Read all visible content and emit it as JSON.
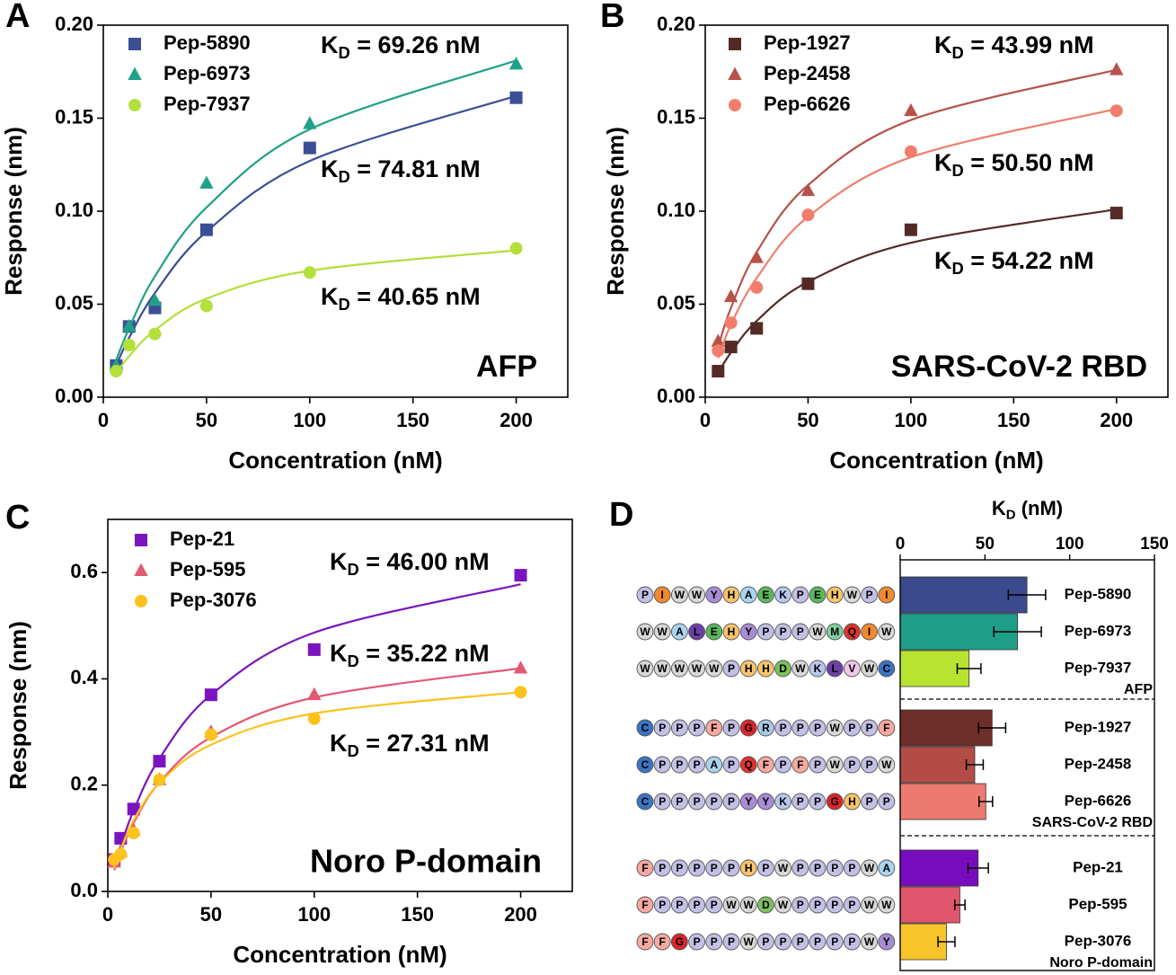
{
  "chart_data": [
    {
      "type": "scatter",
      "panel_label": "A",
      "inset_label": "AFP",
      "x_label": "Concentration (nM)",
      "y_label": "Response (nm)",
      "x": [
        6.25,
        12.5,
        25,
        50,
        100,
        200
      ],
      "xlim": [
        0,
        225
      ],
      "xticks": [
        0,
        50,
        100,
        150,
        200
      ],
      "ylim": [
        0,
        0.2
      ],
      "yticks": [
        {
          "value": 0,
          "label": "0.00"
        },
        0.05,
        {
          "value": 0.1,
          "label": "0.10"
        },
        0.15,
        {
          "value": 0.2,
          "label": "0.20"
        }
      ],
      "series": [
        {
          "name": "Pep-5890",
          "color": "#3a4f96",
          "marker": "square",
          "values": [
            0.017,
            0.038,
            0.048,
            0.09,
            0.134,
            0.161
          ],
          "fit": [
            0.017,
            0.032,
            0.056,
            0.089,
            0.127,
            0.162
          ],
          "annotation": {
            "main": "K",
            "sub": "D",
            "tail": " = 74.81 nM"
          }
        },
        {
          "name": "Pep-6973",
          "color": "#1fa187",
          "marker": "triangle",
          "values": [
            0.017,
            0.038,
            0.052,
            0.115,
            0.147,
            0.179
          ],
          "fit": [
            0.02,
            0.037,
            0.065,
            0.102,
            0.144,
            0.181
          ],
          "annotation": {
            "main": "K",
            "sub": "D",
            "tail": " = 69.26 nM"
          }
        },
        {
          "name": "Pep-7937",
          "color": "#b3e03a",
          "marker": "circle",
          "values": [
            0.014,
            0.028,
            0.034,
            0.049,
            0.067,
            0.08
          ],
          "fit": [
            0.013,
            0.022,
            0.036,
            0.053,
            0.068,
            0.079
          ],
          "annotation": {
            "main": "K",
            "sub": "D",
            "tail": " = 40.65 nM"
          }
        }
      ]
    },
    {
      "type": "scatter",
      "panel_label": "B",
      "inset_label": "SARS-CoV-2 RBD",
      "x_label": "Concentration (nM)",
      "y_label": "Response (nm)",
      "x": [
        6.25,
        12.5,
        25,
        50,
        100,
        200
      ],
      "xlim": [
        0,
        225
      ],
      "xticks": [
        0,
        50,
        100,
        150,
        200
      ],
      "ylim": [
        0,
        0.2
      ],
      "yticks": [
        {
          "value": 0,
          "label": "0.00"
        },
        0.05,
        {
          "value": 0.1,
          "label": "0.10"
        },
        0.15,
        {
          "value": 0.2,
          "label": "0.20"
        }
      ],
      "series": [
        {
          "name": "Pep-1927",
          "color": "#552a26",
          "marker": "square",
          "values": [
            0.014,
            0.027,
            0.037,
            0.061,
            0.09,
            0.099
          ],
          "fit": [
            0.013,
            0.024,
            0.041,
            0.062,
            0.083,
            0.101
          ],
          "annotation": {
            "main": "K",
            "sub": "D",
            "tail": " = 54.22 nM"
          }
        },
        {
          "name": "Pep-2458",
          "color": "#b5524a",
          "marker": "triangle",
          "values": [
            0.03,
            0.054,
            0.075,
            0.111,
            0.154,
            0.176
          ],
          "fit": [
            0.027,
            0.048,
            0.078,
            0.114,
            0.149,
            0.176
          ],
          "annotation": {
            "main": "K",
            "sub": "D",
            "tail": " = 43.99 nM"
          }
        },
        {
          "name": "Pep-6626",
          "color": "#f27d6c",
          "marker": "circle",
          "values": [
            0.025,
            0.04,
            0.059,
            0.098,
            0.132,
            0.154
          ],
          "fit": [
            0.021,
            0.039,
            0.064,
            0.097,
            0.129,
            0.155
          ],
          "annotation": {
            "main": "K",
            "sub": "D",
            "tail": " = 50.50 nM"
          }
        }
      ]
    },
    {
      "type": "scatter",
      "panel_label": "C",
      "inset_label": "Noro P-domain",
      "x_label": "Concentration (nM)",
      "y_label": "Response (nm)",
      "x": [
        3.125,
        6.25,
        12.5,
        25,
        50,
        100,
        200
      ],
      "xlim": [
        0,
        225
      ],
      "xticks": [
        0,
        50,
        100,
        150,
        200
      ],
      "ylim": [
        0,
        0.7
      ],
      "yticks": [
        {
          "value": 0,
          "label": "0.0"
        },
        0.2,
        0.4,
        0.6
      ],
      "series": [
        {
          "name": "Pep-21",
          "color": "#7a14c0",
          "marker": "square",
          "values": [
            0.06,
            0.1,
            0.155,
            0.245,
            0.37,
            0.455,
            0.595
          ],
          "fit": [
            0.045,
            0.085,
            0.152,
            0.25,
            0.37,
            0.487,
            0.578
          ],
          "annotation": {
            "main": "K",
            "sub": "D",
            "tail": " = 46.00 nM"
          }
        },
        {
          "name": "Pep-595",
          "color": "#e35872",
          "marker": "triangle",
          "values": [
            0.055,
            0.075,
            0.115,
            0.21,
            0.3,
            0.37,
            0.42
          ],
          "fit": [
            0.04,
            0.075,
            0.129,
            0.205,
            0.29,
            0.365,
            0.42
          ],
          "annotation": {
            "main": "K",
            "sub": "D",
            "tail": " = 35.22 nM"
          }
        },
        {
          "name": "Pep-3076",
          "color": "#fbc31c",
          "marker": "circle",
          "values": [
            0.06,
            0.07,
            0.11,
            0.21,
            0.295,
            0.325,
            0.375
          ],
          "fit": [
            0.044,
            0.079,
            0.134,
            0.204,
            0.276,
            0.335,
            0.375
          ],
          "annotation": {
            "main": "K",
            "sub": "D",
            "tail": " = 27.31 nM"
          }
        }
      ]
    },
    {
      "type": "bar",
      "orientation": "horizontal",
      "panel_label": "D",
      "x_label": {
        "main": "K",
        "sub": "D",
        "tail": " (nM)"
      },
      "xlim": [
        0,
        150
      ],
      "xticks": [
        0,
        50,
        100,
        150
      ],
      "residue_colors": {
        "P": "#c3c0e6",
        "I": "#ef8a2e",
        "W": "#d8d8d8",
        "Y": "#a88cd6",
        "H": "#f6c46b",
        "A": "#a9d4ee",
        "E": "#5cb85c",
        "K": "#b9c7ee",
        "L": "#6b3fa8",
        "M": "#7fcfa0",
        "Q": "#e0332b",
        "C": "#3a74c4",
        "F": "#f7a9a0",
        "G": "#d9262a",
        "R": "#a9c9ea",
        "D": "#7cc05a",
        "V": "#f0c6e8"
      },
      "groups": [
        {
          "label": "AFP",
          "categories": [
            "Pep-5890",
            "Pep-6973",
            "Pep-7937"
          ],
          "values": [
            74.81,
            69.26,
            40.65
          ],
          "errors": [
            11,
            14,
            7
          ],
          "colors": [
            "#3b4a8c",
            "#1e9e89",
            "#b8e330"
          ],
          "sequences": [
            "PIWWYHAEKPEHWPI",
            "WWALEHYPPPWMQIW",
            "WWWWWPHHDWKLVWC"
          ]
        },
        {
          "label": "SARS-CoV-2 RBD",
          "categories": [
            "Pep-1927",
            "Pep-2458",
            "Pep-6626"
          ],
          "values": [
            54.22,
            43.99,
            50.5
          ],
          "errors": [
            8,
            5,
            4
          ],
          "colors": [
            "#6e2e2a",
            "#b34b47",
            "#ec7a70"
          ],
          "sequences": [
            "CPPPFPGRPPPWPPF",
            "CPPPAPQFPFPWPPW",
            "CPPPPPYYKPPGHPP"
          ]
        },
        {
          "label": "Noro P-domain",
          "categories": [
            "Pep-21",
            "Pep-595",
            "Pep-3076"
          ],
          "values": [
            46.0,
            35.22,
            27.31
          ],
          "errors": [
            6,
            3,
            5
          ],
          "colors": [
            "#7a0cc0",
            "#e0566c",
            "#f7c52a"
          ],
          "sequences": [
            "FPPPPPHPWPPPPWA",
            "FPPPPWWDWPPPPWW",
            "FFGPPPWPPPPPPWY"
          ]
        }
      ]
    }
  ]
}
